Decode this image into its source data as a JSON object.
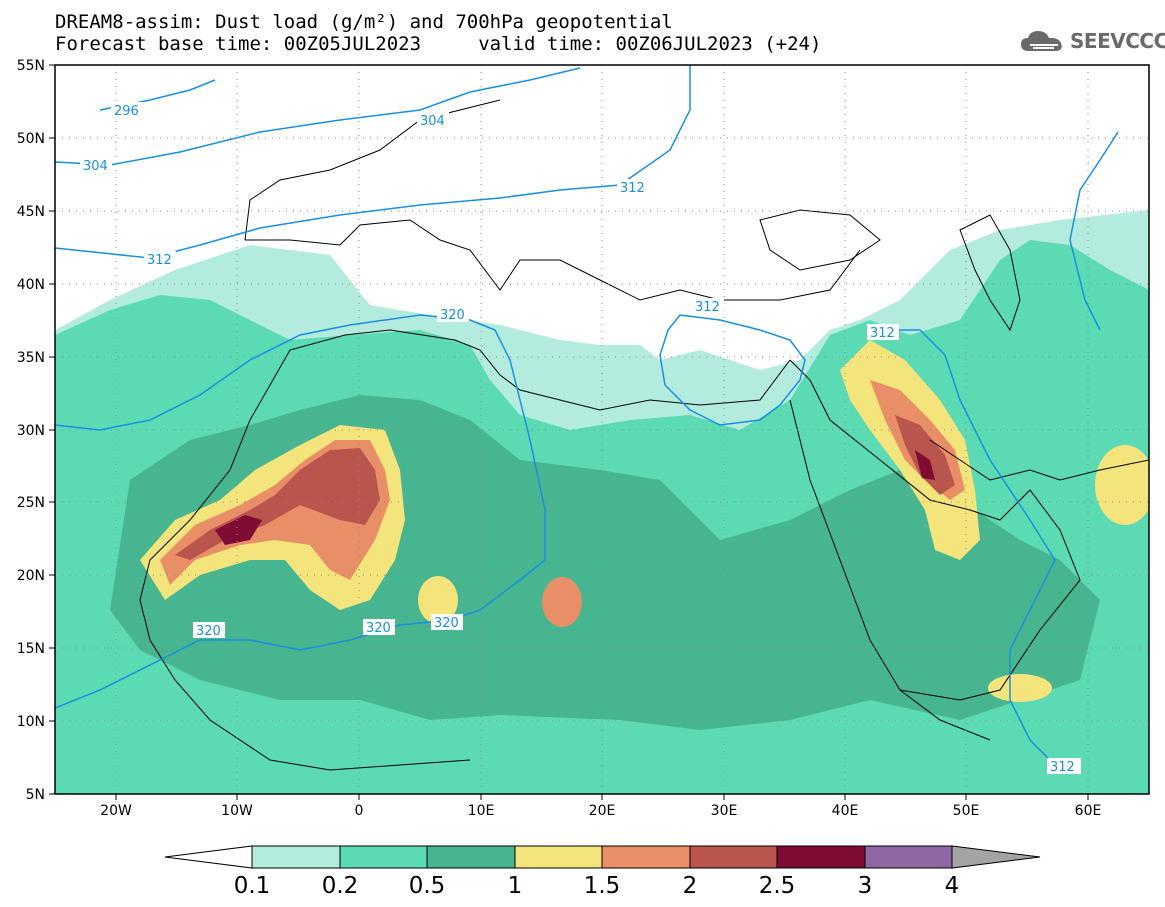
{
  "title_line1": "DREAM8-assim: Dust load (g/m²) and 700hPa geopotential",
  "title_line2": "Forecast base time: 00Z05JUL2023     valid time: 00Z06JUL2023 (+24)",
  "logo": {
    "text": "SEEVCCC",
    "icon": "cloud-logo-icon",
    "color": "#6a6a6a"
  },
  "map": {
    "lon_range": [
      -25,
      65
    ],
    "lat_range": [
      5,
      55
    ],
    "lon_ticks": [
      "20W",
      "10W",
      "0",
      "10E",
      "20E",
      "30E",
      "40E",
      "50E",
      "60E"
    ],
    "lat_ticks": [
      "55N",
      "50N",
      "45N",
      "40N",
      "35N",
      "30N",
      "25N",
      "20N",
      "15N",
      "10N",
      "5N"
    ],
    "gridlines": "dotted",
    "contour_color": "#1a8fe0",
    "contour_labels": [
      "296",
      "304",
      "304",
      "312",
      "312",
      "312",
      "312",
      "312",
      "320",
      "320",
      "320",
      "320"
    ]
  },
  "colorbar": {
    "labels": [
      "0.1",
      "0.2",
      "0.5",
      "1",
      "1.5",
      "2",
      "2.5",
      "3",
      "4"
    ],
    "colors": [
      "#ffffff",
      "#b3ecdf",
      "#5cdab4",
      "#47b58f",
      "#f3e47c",
      "#e88f68",
      "#b8554c",
      "#800c34",
      "#8e67a3",
      "#a4a4a4"
    ]
  }
}
